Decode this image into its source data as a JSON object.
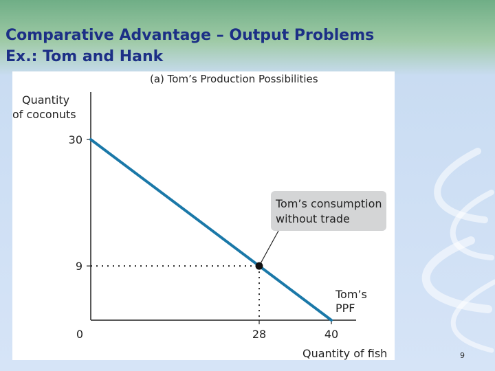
{
  "slide": {
    "title_line1": "Comparative Advantage – Output Problems",
    "title_line2": "Ex.: Tom and Hank",
    "page_number": "9"
  },
  "colors": {
    "title": "#1c2f86",
    "ppf_line": "#1a78a8",
    "callout_fill": "#d4d5d6",
    "axis": "#222222"
  },
  "chart_data": {
    "type": "line",
    "title": "(a) Tom’s Production Possibilities",
    "xlabel": "Quantity of fish",
    "ylabel_lines": [
      "Quantity",
      "of coconuts"
    ],
    "xlim": [
      0,
      40
    ],
    "ylim": [
      0,
      30
    ],
    "x_ticks": [
      {
        "value": 0,
        "label": "0"
      },
      {
        "value": 28,
        "label": "28"
      },
      {
        "value": 40,
        "label": "40"
      }
    ],
    "y_ticks": [
      {
        "value": 30,
        "label": "30"
      },
      {
        "value": 9,
        "label": "9"
      }
    ],
    "series": [
      {
        "name": "Tom’s PPF",
        "name_lines": [
          "Tom’s",
          "PPF"
        ],
        "x": [
          0,
          40
        ],
        "y": [
          30,
          0
        ]
      }
    ],
    "points": [
      {
        "x": 28,
        "y": 9,
        "label": "Tom’s consumption without trade",
        "label_lines": [
          "Tom’s consumption",
          "without trade"
        ]
      }
    ],
    "grid": false
  }
}
